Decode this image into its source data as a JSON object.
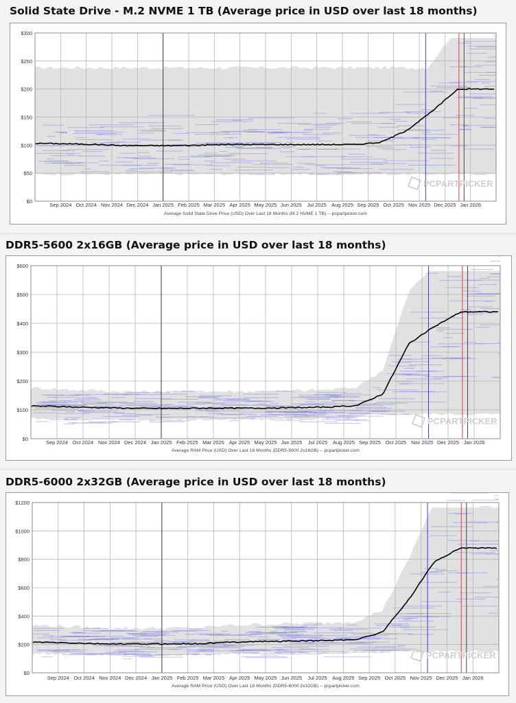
{
  "watermark": "PCPARTPICKER",
  "colors": {
    "line": "#000000",
    "band": "#dcdcdc",
    "listing": "#5b5bdc",
    "marker_blue": "#3a3ae0",
    "marker_red": "#e03a3a",
    "marker_black": "#444444",
    "grid": "#b4b4b4"
  },
  "chart_data": [
    {
      "type": "line",
      "title": "Solid State Drive - M.2 NVME 1 TB (Average price in USD over last 18 months)",
      "xlabel": "Average Solid State Drive Price (USD) Over Last 18 Months (M.2 NVME 1 TB) -- pcpartpicker.com",
      "ylabel": "",
      "x": [
        "Sep 2024",
        "Oct 2024",
        "Nov 2024",
        "Dec 2024",
        "Jan 2025",
        "Feb 2025",
        "Mar 2025",
        "Apr 2025",
        "May 2025",
        "Jun 2025",
        "Jul 2025",
        "Aug 2025",
        "Sep 2025",
        "Oct 2025",
        "Nov 2025",
        "Dec 2025",
        "Jan 2026"
      ],
      "ylim": [
        0,
        300
      ],
      "yticks": [
        "$0",
        "$50",
        "$100",
        "$150",
        "$200",
        "$250",
        "$300"
      ],
      "series": [
        {
          "values": [
            103,
            102,
            101,
            99,
            99,
            99,
            100,
            101,
            101,
            101,
            101,
            101,
            101,
            105,
            126,
            160,
            200
          ]
        }
      ],
      "range_low": 48,
      "range_high": 238,
      "year_marker": "Jan 2025",
      "markers": [
        "Nov 2025",
        "Dec 2025"
      ],
      "grid": true
    },
    {
      "type": "line",
      "title": "DDR5-5600 2x16GB (Average price in USD over last 18 months)",
      "xlabel": "Average RAM Price (USD) Over Last 18 Months (DDR5-5600 2x16GB) -- pcpartpicker.com",
      "ylabel": "",
      "x": [
        "Sep 2024",
        "Oct 2024",
        "Nov 2024",
        "Dec 2024",
        "Jan 2025",
        "Feb 2025",
        "Mar 2025",
        "Apr 2025",
        "May 2025",
        "Jun 2025",
        "Jul 2025",
        "Aug 2025",
        "Sep 2025",
        "Oct 2025",
        "Nov 2025",
        "Dec 2025",
        "Jan 2026"
      ],
      "ylim": [
        0,
        600
      ],
      "yticks": [
        "$0",
        "$100",
        "$200",
        "$300",
        "$400",
        "$500",
        "$600"
      ],
      "series": [
        {
          "values": [
            113,
            110,
            108,
            106,
            105,
            105,
            106,
            106,
            106,
            107,
            108,
            110,
            115,
            155,
            330,
            390,
            440
          ]
        }
      ],
      "range_low": 85,
      "range_high": 160,
      "year_marker": "Jan 2025",
      "markers": [
        "Nov 2025",
        "Dec 2025"
      ],
      "grid": true
    },
    {
      "type": "line",
      "title": "DDR5-6000 2x32GB (Average price in USD over last 18 months)",
      "xlabel": "Average RAM Price (USD) Over Last 18 Months (DDR5-6000 2x32GB) -- pcpartpicker.com",
      "ylabel": "",
      "x": [
        "Sep 2024",
        "Oct 2024",
        "Nov 2024",
        "Dec 2024",
        "Jan 2025",
        "Feb 2025",
        "Mar 2025",
        "Apr 2025",
        "May 2025",
        "Jun 2025",
        "Jul 2025",
        "Aug 2025",
        "Sep 2025",
        "Oct 2025",
        "Nov 2025",
        "Dec 2025",
        "Jan 2026"
      ],
      "ylim": [
        0,
        1200
      ],
      "yticks": [
        "$0",
        "$200",
        "$400",
        "$600",
        "$800",
        "$1000",
        "$1200"
      ],
      "series": [
        {
          "values": [
            215,
            210,
            205,
            203,
            203,
            204,
            205,
            215,
            220,
            222,
            225,
            228,
            235,
            285,
            510,
            780,
            880
          ]
        }
      ],
      "range_low": 150,
      "range_high": 290,
      "year_marker": "Jan 2025",
      "markers": [
        "Nov 2025",
        "Dec 2025"
      ],
      "grid": true
    }
  ]
}
